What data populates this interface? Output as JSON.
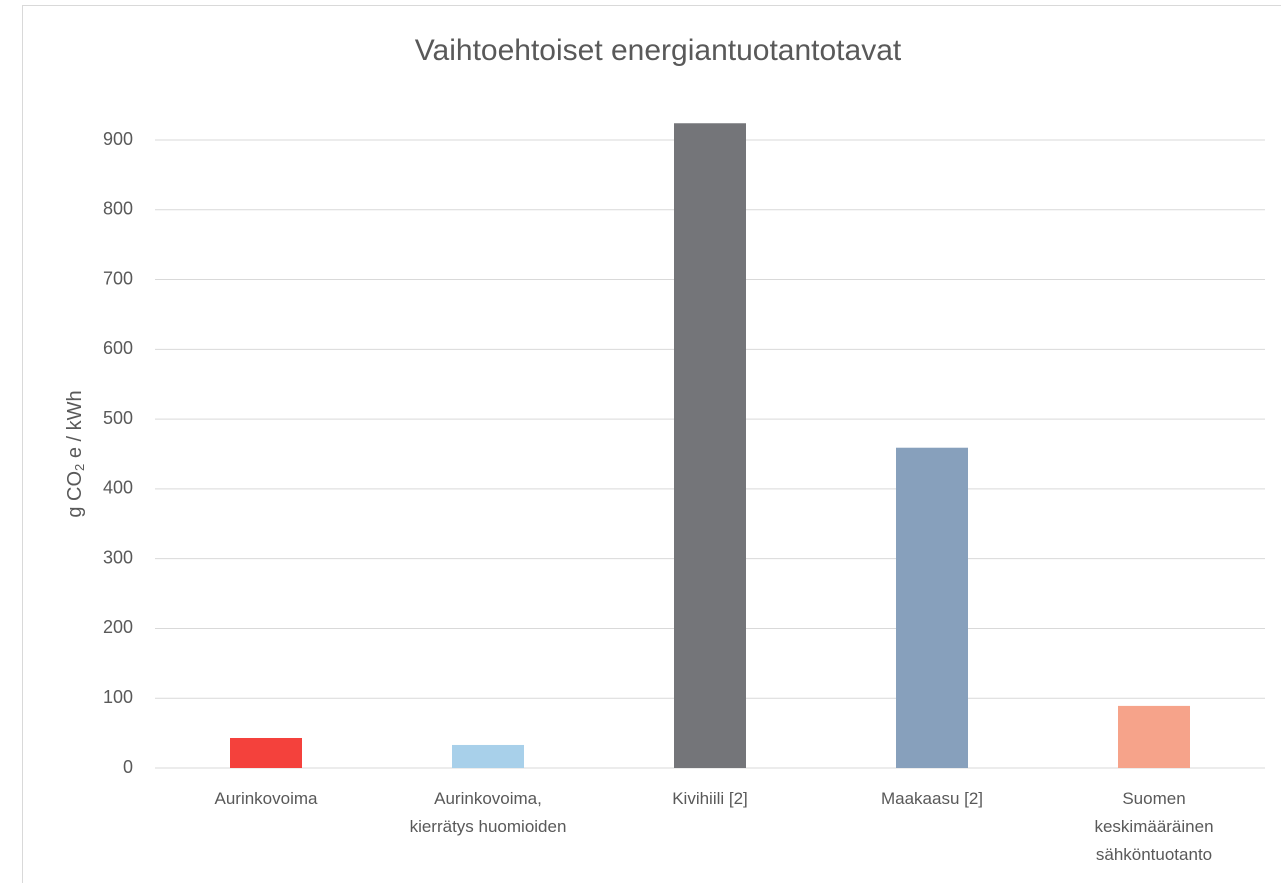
{
  "chart_data": {
    "type": "bar",
    "title": "Vaihtoehtoiset energiantuotantotavat",
    "y_label": [
      "g CO",
      "2",
      " e / kWh"
    ],
    "categories": [
      "Aurinkovoima",
      "Aurinkovoima,\nkierrätys huomioiden",
      "Kivihiili [2]",
      "Maakaasu [2]",
      "Suomen\nkeskimääräinen\nsähköntuotanto"
    ],
    "values": [
      43,
      33,
      924,
      459,
      89
    ],
    "colors": [
      "#f4413c",
      "#a8d0ea",
      "#747579",
      "#87a0bc",
      "#f6a38a"
    ],
    "ylim": [
      0,
      900
    ],
    "yticks": [
      0,
      100,
      200,
      300,
      400,
      500,
      600,
      700,
      800,
      900
    ],
    "grid": true
  }
}
